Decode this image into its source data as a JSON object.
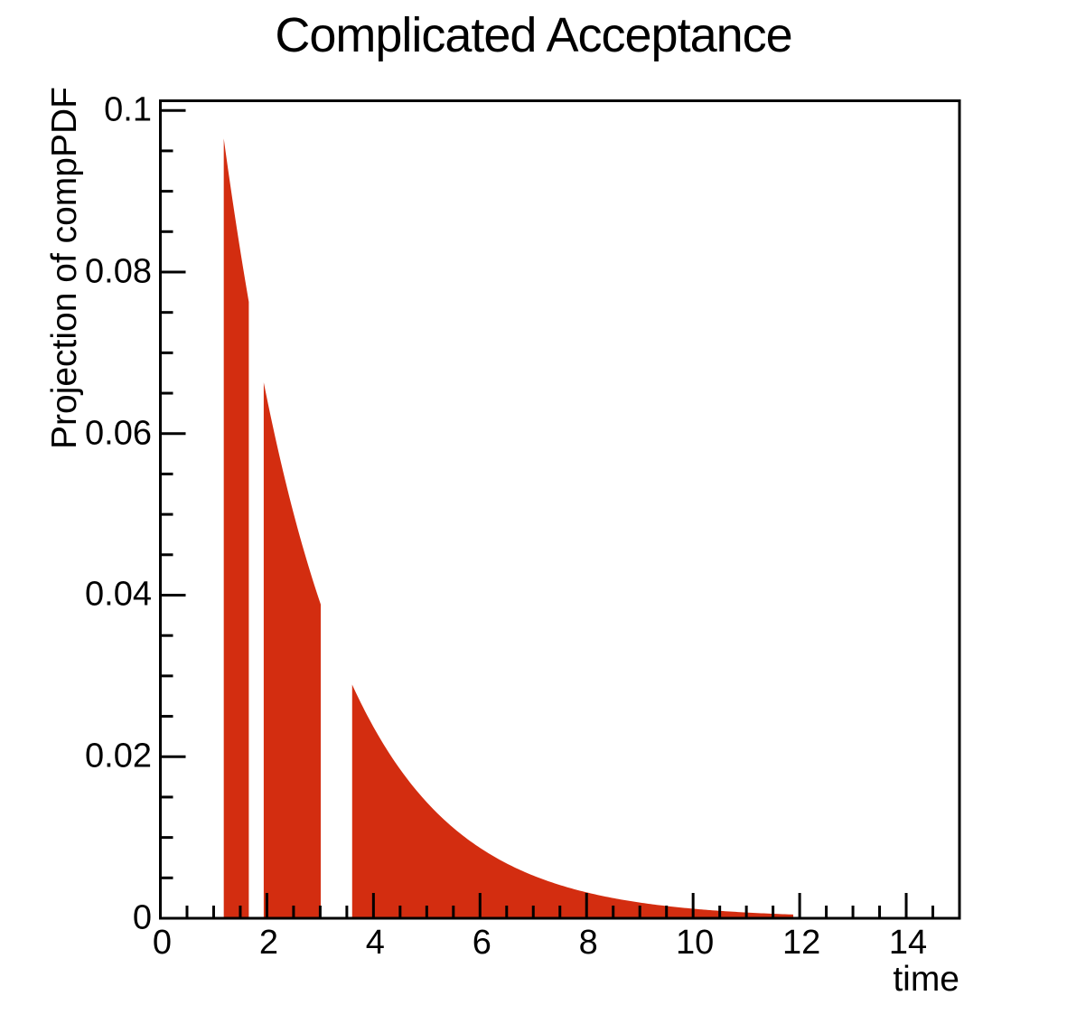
{
  "title": "Complicated Acceptance",
  "chart_data": {
    "type": "area",
    "title": "Complicated Acceptance",
    "xlabel": "time",
    "ylabel": "Projection of compPDF",
    "xlim": [
      0,
      15
    ],
    "ylim": [
      0,
      0.1012
    ],
    "grid": false,
    "legend": "none",
    "x_major_ticks": [
      0,
      2,
      4,
      6,
      8,
      10,
      12,
      14
    ],
    "x_tick_labels": [
      "0",
      "2",
      "4",
      "6",
      "8",
      "10",
      "12",
      "14"
    ],
    "x_minor_step": 0.5,
    "y_major_ticks": [
      0,
      0.02,
      0.04,
      0.06,
      0.08,
      0.1
    ],
    "y_tick_labels": [
      "0",
      "0.02",
      "0.04",
      "0.06",
      "0.08",
      "0.1"
    ],
    "y_minor_step": 0.005,
    "series": [
      {
        "name": "compPDF",
        "model": "amplitude * exp(-t / tau)",
        "amplitude": 0.175,
        "tau": 2.0,
        "acceptance_windows": [
          [
            1.19,
            1.66
          ],
          [
            1.94,
            3.01
          ],
          [
            3.6,
            11.88
          ]
        ],
        "key_points": [
          {
            "t": 1.19,
            "y": 0.0965
          },
          {
            "t": 1.66,
            "y": 0.077
          },
          {
            "t": 1.94,
            "y": 0.066
          },
          {
            "t": 3.01,
            "y": 0.039
          },
          {
            "t": 3.6,
            "y": 0.0289
          },
          {
            "t": 6.0,
            "y": 0.0087
          },
          {
            "t": 8.0,
            "y": 0.0032
          },
          {
            "t": 10.0,
            "y": 0.0012
          },
          {
            "t": 11.88,
            "y": 0.0005
          }
        ],
        "fill_color": "#d32d10"
      }
    ]
  },
  "colors": {
    "fill": "#d32d10",
    "axis": "#000000",
    "background": "#ffffff",
    "text": "#000000"
  }
}
